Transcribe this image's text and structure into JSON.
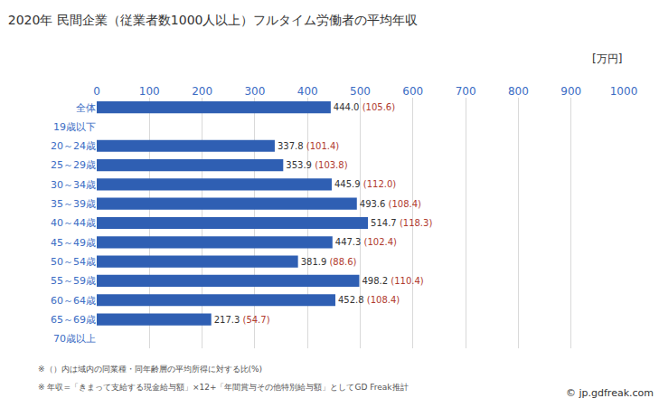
{
  "chart_data": {
    "type": "bar",
    "orientation": "horizontal",
    "title": "2020年 民間企業（従業者数1000人以上）フルタイム労働者の平均年収",
    "unit": "[万円]",
    "categories": [
      "全体",
      "19歳以下",
      "20～24歳",
      "25～29歳",
      "30～34歳",
      "35～39歳",
      "40～44歳",
      "45～49歳",
      "50～54歳",
      "55～59歳",
      "60～64歳",
      "65～69歳",
      "70歳以上"
    ],
    "values": [
      444.0,
      null,
      337.8,
      353.9,
      445.9,
      493.6,
      514.7,
      447.3,
      381.9,
      498.2,
      452.8,
      217.3,
      null
    ],
    "value_labels": [
      "444.0",
      null,
      "337.8",
      "353.9",
      "445.9",
      "493.6",
      "514.7",
      "447.3",
      "381.9",
      "498.2",
      "452.8",
      "217.3",
      null
    ],
    "ratio_labels": [
      "(105.6)",
      null,
      "(101.4)",
      "(103.8)",
      "(112.0)",
      "(108.4)",
      "(118.3)",
      "(102.4)",
      "(88.6)",
      "(110.4)",
      "(108.4)",
      "(54.7)",
      null
    ],
    "color": "#2f5fb3",
    "xlim": [
      0,
      1000
    ],
    "xticks": [
      0,
      100,
      200,
      300,
      400,
      500,
      600,
      700,
      800,
      900,
      1000
    ],
    "grid": true,
    "data_labels": true,
    "notes": [
      "※（）内は域内の同業種・同年齢層の平均所得に対する比(%)",
      "※ 年収=「きまって支給する現金給与額」×12+「年間賞与その他特別給与額」としてGD Freak推計"
    ],
    "credit": "© jp.gdfreak.com"
  }
}
